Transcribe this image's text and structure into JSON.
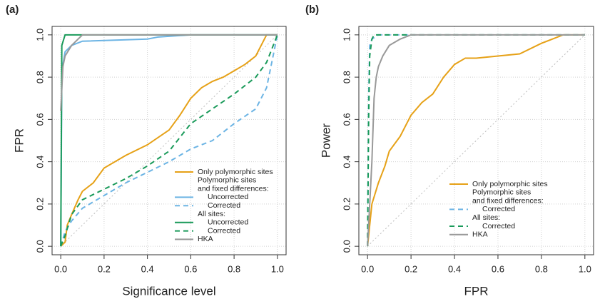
{
  "chart_data": [
    {
      "type": "line",
      "panel_label": "(a)",
      "x_label": "Significance level",
      "y_label": "FPR",
      "xlim": [
        -0.04,
        1.04
      ],
      "ylim": [
        -0.04,
        1.04
      ],
      "grid": true,
      "xticks": [
        {
          "value": 0,
          "label": "0.0"
        },
        0.2,
        0.4,
        0.6,
        0.8,
        {
          "value": 1,
          "label": "1.0"
        }
      ],
      "yticks": [
        {
          "value": 0,
          "label": "0.0"
        },
        0.2,
        0.4,
        0.6,
        0.8,
        {
          "value": 1,
          "label": "1.0"
        }
      ],
      "legend_headings": [
        [
          "Polymorphic sites",
          "and fixed differences:"
        ],
        [
          "All sites:"
        ]
      ],
      "series": [
        {
          "name": "Only polymorphic sites",
          "color": "#e6a117",
          "dashed": false,
          "x": [
            0,
            0.02,
            0.03,
            0.05,
            0.08,
            0.1,
            0.15,
            0.2,
            0.3,
            0.4,
            0.5,
            0.55,
            0.6,
            0.65,
            0.7,
            0.75,
            0.8,
            0.85,
            0.9,
            0.95,
            1
          ],
          "values": [
            0,
            0.02,
            0.1,
            0.15,
            0.22,
            0.26,
            0.3,
            0.37,
            0.43,
            0.48,
            0.55,
            0.62,
            0.7,
            0.75,
            0.78,
            0.8,
            0.83,
            0.86,
            0.9,
            1,
            1
          ]
        },
        {
          "name": "Uncorrected",
          "color": "#6cb4e4",
          "dashed": false,
          "x": [
            0,
            0.005,
            0.01,
            0.02,
            0.05,
            0.1,
            0.4,
            0.45,
            0.6,
            1
          ],
          "values": [
            0,
            0.8,
            0.86,
            0.92,
            0.95,
            0.97,
            0.98,
            0.99,
            1,
            1
          ]
        },
        {
          "name": "Corrected",
          "color": "#6cb4e4",
          "dashed": true,
          "x": [
            0,
            0.02,
            0.05,
            0.1,
            0.2,
            0.3,
            0.4,
            0.5,
            0.6,
            0.7,
            0.8,
            0.9,
            0.95,
            1
          ],
          "values": [
            0,
            0.07,
            0.12,
            0.18,
            0.24,
            0.3,
            0.35,
            0.4,
            0.46,
            0.5,
            0.58,
            0.65,
            0.75,
            1
          ]
        },
        {
          "name": "Uncorrected",
          "color": "#1a9a5a",
          "dashed": false,
          "x": [
            0,
            0.005,
            0.02,
            0.05,
            1
          ],
          "values": [
            0,
            0.95,
            1,
            1,
            1
          ]
        },
        {
          "name": "Corrected",
          "color": "#1a9a5a",
          "dashed": true,
          "x": [
            0,
            0.02,
            0.05,
            0.1,
            0.2,
            0.3,
            0.4,
            0.5,
            0.6,
            0.7,
            0.8,
            0.9,
            0.95,
            1
          ],
          "values": [
            0,
            0.05,
            0.15,
            0.22,
            0.27,
            0.32,
            0.38,
            0.45,
            0.58,
            0.65,
            0.72,
            0.8,
            0.87,
            1
          ]
        },
        {
          "name": "HKA",
          "color": "#999999",
          "dashed": false,
          "x": [
            0,
            0.01,
            0.02,
            0.05,
            0.1,
            0.2,
            1
          ],
          "values": [
            0.64,
            0.85,
            0.9,
            0.95,
            1,
            1,
            1
          ]
        }
      ]
    },
    {
      "type": "line",
      "panel_label": "(b)",
      "x_label": "FPR",
      "y_label": "Power",
      "xlim": [
        -0.04,
        1.04
      ],
      "ylim": [
        -0.04,
        1.04
      ],
      "grid": true,
      "xticks": [
        {
          "value": 0,
          "label": "0.0"
        },
        0.2,
        0.4,
        0.6,
        0.8,
        {
          "value": 1,
          "label": "1.0"
        }
      ],
      "yticks": [
        {
          "value": 0,
          "label": "0.0"
        },
        0.2,
        0.4,
        0.6,
        0.8,
        {
          "value": 1,
          "label": "1.0"
        }
      ],
      "legend_headings": [
        [
          "Polymorphic sites",
          "and fixed differences:"
        ],
        [
          "All sites:"
        ]
      ],
      "series": [
        {
          "name": "Only polymorphic sites",
          "color": "#e6a117",
          "dashed": false,
          "x": [
            0,
            0.01,
            0.02,
            0.05,
            0.08,
            0.1,
            0.15,
            0.2,
            0.25,
            0.3,
            0.35,
            0.4,
            0.45,
            0.5,
            0.6,
            0.7,
            0.8,
            0.85,
            0.9,
            1
          ],
          "values": [
            0,
            0.1,
            0.2,
            0.3,
            0.38,
            0.45,
            0.52,
            0.62,
            0.68,
            0.72,
            0.8,
            0.86,
            0.89,
            0.89,
            0.9,
            0.91,
            0.96,
            0.98,
            1,
            1
          ]
        },
        {
          "name": "Corrected",
          "color": "#6cb4e4",
          "dashed": true,
          "x": [
            0,
            0.005,
            0.01,
            0.02,
            0.05,
            1
          ],
          "values": [
            0,
            0.7,
            0.95,
            0.98,
            1,
            1
          ]
        },
        {
          "name": "Corrected",
          "color": "#1a9a5a",
          "dashed": true,
          "x": [
            0,
            0.005,
            0.01,
            0.02,
            0.03,
            1
          ],
          "values": [
            0,
            0.6,
            0.9,
            0.98,
            1,
            1
          ]
        },
        {
          "name": "HKA",
          "color": "#999999",
          "dashed": false,
          "x": [
            0,
            0.02,
            0.03,
            0.04,
            0.05,
            0.07,
            0.1,
            0.15,
            0.2,
            1
          ],
          "values": [
            0,
            0.4,
            0.7,
            0.8,
            0.85,
            0.9,
            0.95,
            0.98,
            1,
            1
          ]
        }
      ]
    }
  ]
}
